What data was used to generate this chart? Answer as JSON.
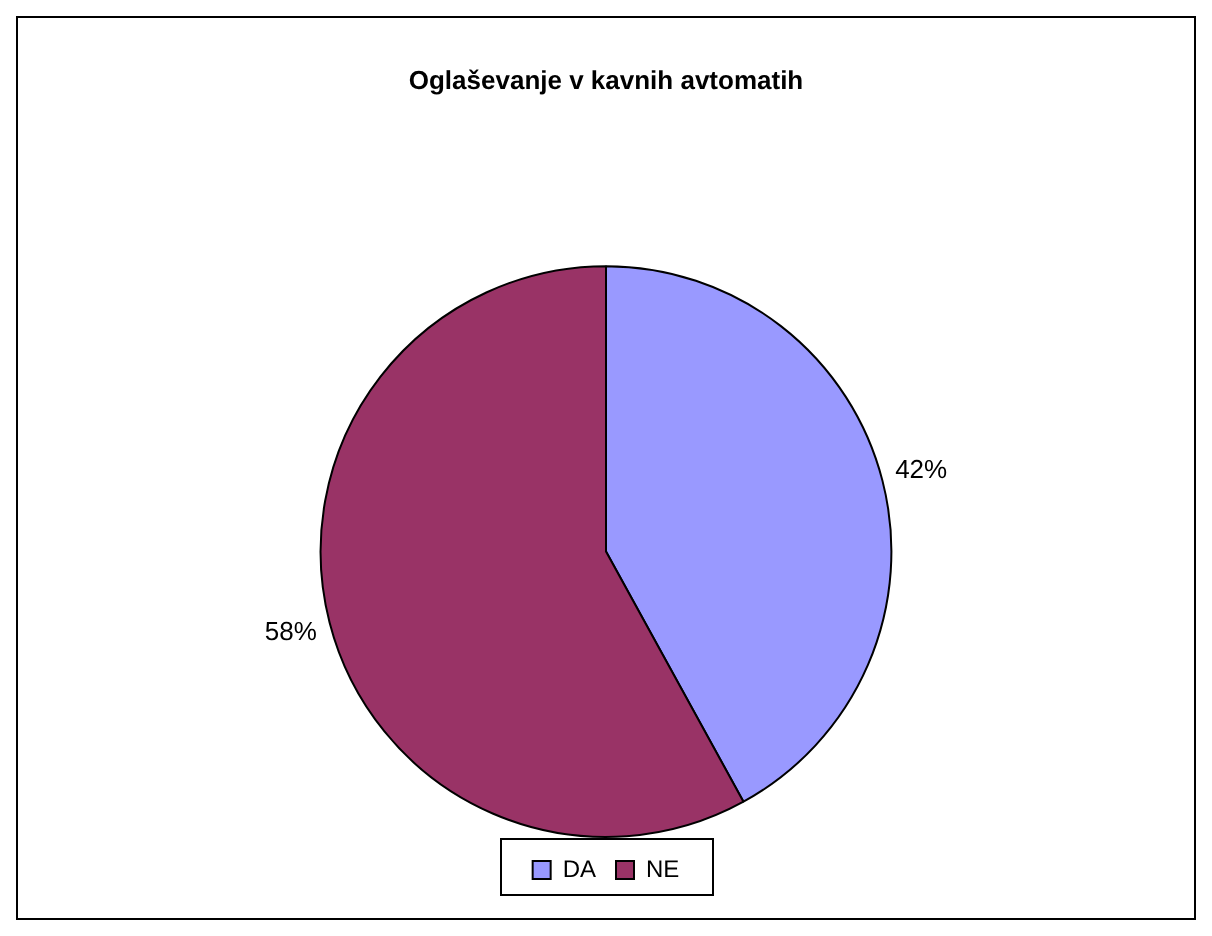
{
  "chart_data": {
    "type": "pie",
    "title": "Oglaševanje v kavnih avtomatih",
    "categories": [
      "DA",
      "NE"
    ],
    "values": [
      42,
      58
    ],
    "colors": [
      "#9999ff",
      "#993366"
    ],
    "value_labels": [
      "42%",
      "58%"
    ],
    "legend": "bottom"
  }
}
